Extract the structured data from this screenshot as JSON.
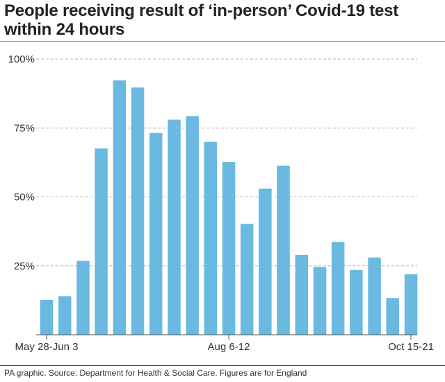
{
  "title_line1": "People receiving result of ‘in-person’ Covid-19 test",
  "title_line2": "within 24 hours",
  "source": "PA graphic. Source: Department for Health & Social Care. Figures are for England",
  "colors": {
    "bar": "#6ab9e1",
    "grid": "#b3b3b3",
    "text": "#333333",
    "axis": "#555555"
  },
  "chart_data": {
    "type": "bar",
    "title": "People receiving result of ‘in-person’ Covid-19 test within 24 hours",
    "xlabel": "",
    "ylabel": "",
    "ylim": [
      0,
      100
    ],
    "yticks": [
      25,
      50,
      75,
      100
    ],
    "ytick_labels": [
      "25%",
      "50%",
      "75%",
      "100%"
    ],
    "grid": "dashed horizontal",
    "xtick_labels": [
      {
        "index": 0,
        "label": "May 28-Jun 3"
      },
      {
        "index": 10,
        "label": "Aug 6-12"
      },
      {
        "index": 20,
        "label": "Oct 15-21"
      }
    ],
    "values": [
      12.6,
      14,
      26.8,
      67.6,
      92.3,
      89.7,
      73.2,
      78,
      79.3,
      70,
      62.7,
      40.2,
      53,
      61.3,
      29,
      24.6,
      33.7,
      23.5,
      28,
      13.3,
      22
    ]
  }
}
